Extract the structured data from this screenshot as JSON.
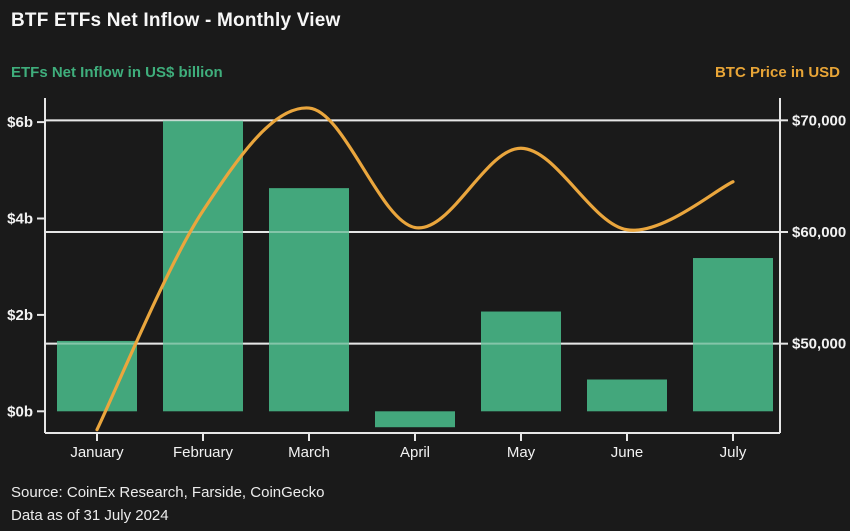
{
  "header": {
    "title": "BTF ETFs Net Inflow - Monthly View"
  },
  "axis_titles": {
    "left": "ETFs Net Inflow in US$ billion",
    "right": "BTC Price in USD"
  },
  "footer": {
    "source_line": "Source: CoinEx Research, Farside, CoinGecko",
    "date_line": "Data as of 31 July 2024"
  },
  "colors": {
    "background": "#1a1a1a",
    "bar": "#43a77c",
    "line": "#eaa63d",
    "axis": "#e6e6e6",
    "grid_under": "#d9d9d9",
    "grid_overlay": "rgba(255,255,255,0.35)",
    "tick_text": "#f2f2f2",
    "month_text": "#f2f2f2"
  },
  "chart_data": {
    "type": "combo-bar-line",
    "title": "BTF ETFs Net Inflow - Monthly View",
    "categories": [
      "January",
      "February",
      "March",
      "April",
      "May",
      "June",
      "July"
    ],
    "series": [
      {
        "name": "ETFs Net Inflow",
        "type": "bar",
        "unit": "US$ billion",
        "axis": "left",
        "values": [
          1.46,
          6.03,
          4.63,
          -0.33,
          2.07,
          0.66,
          3.18
        ]
      },
      {
        "name": "BTC Price",
        "type": "line",
        "unit": "USD",
        "axis": "right",
        "values": [
          42300,
          61900,
          71100,
          60400,
          67500,
          60200,
          64500
        ]
      }
    ],
    "left_axis": {
      "label": "ETFs Net Inflow in US$ billion",
      "tick_labels": [
        "$6b",
        "$4b",
        "$2b",
        "$0b"
      ],
      "tick_values": [
        6,
        4,
        2,
        0
      ],
      "range": [
        -0.45,
        6.5
      ]
    },
    "right_axis": {
      "label": "BTC Price in USD",
      "tick_labels": [
        "$70,000",
        "$60,000",
        "$50,000"
      ],
      "tick_values": [
        70000,
        60000,
        50000
      ],
      "range": [
        42000,
        72000
      ]
    },
    "grid": "horizontal-at-right-axis-ticks",
    "legend": "none"
  }
}
